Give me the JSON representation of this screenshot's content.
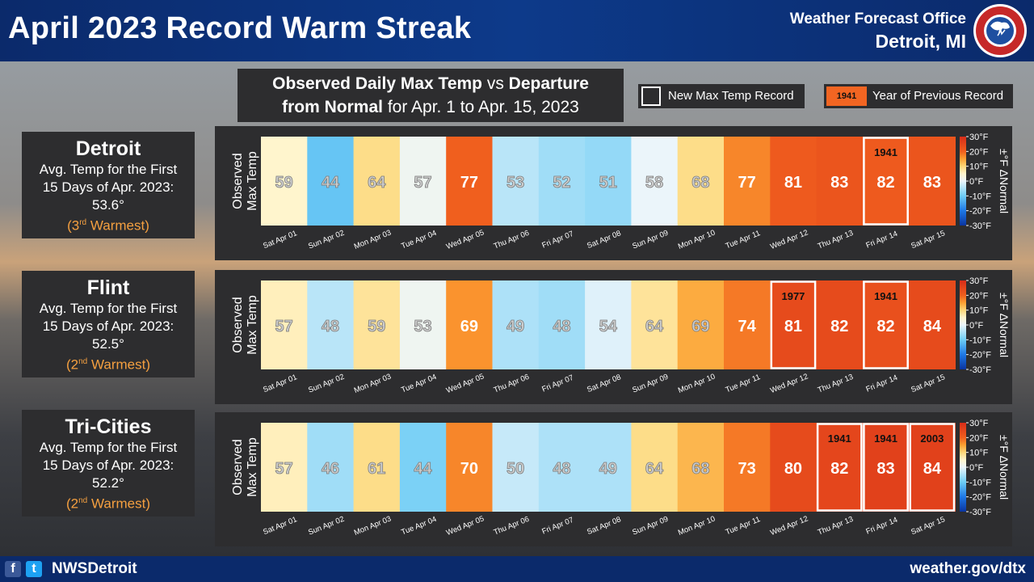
{
  "header": {
    "title": "April 2023 Record Warm Streak",
    "office": "Weather Forecast Office",
    "location": "Detroit, MI",
    "seal_text": "NATIONAL WEATHER SERVICE"
  },
  "subtitle": {
    "line1_bold_a": "Observed Daily Max Temp",
    "line1_mid": " vs ",
    "line1_bold_b": "Departure",
    "line2_bold": "from Normal",
    "line2_rest": " for Apr. 1 to Apr. 15, 2023"
  },
  "legend": {
    "record_label": "New Max Temp Record",
    "prev_sample": "1941",
    "prev_label": "Year of Previous Record"
  },
  "footer": {
    "handle": "NWSDetroit",
    "site": "weather.gov/dtx",
    "fb": "f",
    "tw": "t"
  },
  "colors": {
    "header_bg": "#0b2a6b",
    "panel_bg": "#2d2d2f",
    "rank": "#f5a040",
    "record_year": "#f26522"
  },
  "cities": [
    {
      "name": "Detroit",
      "line1": "Avg. Temp for the First",
      "line2": "15 Days of Apr. 2023:",
      "avg": "53.6°",
      "rank_num": "(3",
      "rank_sup": "rd",
      "rank_rest": " Warmest)"
    },
    {
      "name": "Flint",
      "line1": "Avg. Temp for the First",
      "line2": "15 Days of Apr. 2023:",
      "avg": "52.5°",
      "rank_num": "(2",
      "rank_sup": "nd",
      "rank_rest": " Warmest)"
    },
    {
      "name": "Tri-Cities",
      "line1": "Avg. Temp for the First",
      "line2": "15 Days of Apr. 2023:",
      "avg": "52.2°",
      "rank_num": "(2",
      "rank_sup": "nd",
      "rank_rest": " Warmest)"
    }
  ],
  "chart_data": [
    {
      "type": "heatmap",
      "city": "Detroit",
      "ylabel": [
        "Observed",
        "Max Temp"
      ],
      "categories": [
        "Sat Apr 01",
        "Sun Apr 02",
        "Mon Apr 03",
        "Tue Apr 04",
        "Wed Apr 05",
        "Thu Apr 06",
        "Fri Apr 07",
        "Sat Apr 08",
        "Sun Apr 09",
        "Mon Apr 10",
        "Tue Apr 11",
        "Wed Apr 12",
        "Thu Apr 13",
        "Fri Apr 14",
        "Sat Apr 15"
      ],
      "values": [
        59,
        44,
        64,
        57,
        77,
        53,
        52,
        51,
        58,
        68,
        77,
        81,
        83,
        82,
        83
      ],
      "departures": [
        5,
        -11,
        9,
        1,
        20,
        -4,
        -6,
        -7,
        0,
        9,
        17,
        21,
        22,
        21,
        22
      ],
      "records": [
        {
          "index": 13,
          "prev_year": "1941"
        }
      ],
      "colorbar": {
        "label": "±°F ΔNormal",
        "ticks": [
          "30°F",
          "20°F",
          "10°F",
          "0°F",
          "-10°F",
          "-20°F",
          "-30°F"
        ],
        "range": [
          -30,
          30
        ]
      }
    },
    {
      "type": "heatmap",
      "city": "Flint",
      "ylabel": [
        "Observed",
        "Max Temp"
      ],
      "categories": [
        "Sat Apr 01",
        "Sun Apr 02",
        "Mon Apr 03",
        "Tue Apr 04",
        "Wed Apr 05",
        "Thu Apr 06",
        "Fri Apr 07",
        "Sat Apr 08",
        "Sun Apr 09",
        "Mon Apr 10",
        "Tue Apr 11",
        "Wed Apr 12",
        "Thu Apr 13",
        "Fri Apr 14",
        "Sat Apr 15"
      ],
      "values": [
        57,
        48,
        59,
        53,
        69,
        49,
        48,
        54,
        64,
        69,
        74,
        81,
        82,
        82,
        84
      ],
      "departures": [
        6,
        -4,
        8,
        1,
        16,
        -5,
        -6,
        -1,
        8,
        14,
        18,
        24,
        24,
        23,
        24
      ],
      "records": [
        {
          "index": 11,
          "prev_year": "1977"
        },
        {
          "index": 13,
          "prev_year": "1941"
        }
      ],
      "colorbar": {
        "label": "±°F ΔNormal",
        "ticks": [
          "30°F",
          "20°F",
          "10°F",
          "0°F",
          "-10°F",
          "-20°F",
          "-30°F"
        ],
        "range": [
          -30,
          30
        ]
      }
    },
    {
      "type": "heatmap",
      "city": "Tri-Cities",
      "ylabel": [
        "Observed",
        "Max Temp"
      ],
      "categories": [
        "Sat Apr 01",
        "Sun Apr 02",
        "Mon Apr 03",
        "Tue Apr 04",
        "Wed Apr 05",
        "Thu Apr 06",
        "Fri Apr 07",
        "Sat Apr 08",
        "Sun Apr 09",
        "Mon Apr 10",
        "Tue Apr 11",
        "Wed Apr 12",
        "Thu Apr 13",
        "Fri Apr 14",
        "Sat Apr 15"
      ],
      "values": [
        57,
        46,
        61,
        44,
        70,
        50,
        48,
        49,
        64,
        68,
        73,
        80,
        82,
        83,
        84
      ],
      "departures": [
        6,
        -6,
        9,
        -9,
        17,
        -3,
        -5,
        -5,
        9,
        13,
        18,
        24,
        25,
        26,
        26
      ],
      "records": [
        {
          "index": 12,
          "prev_year": "1941"
        },
        {
          "index": 13,
          "prev_year": "1941"
        },
        {
          "index": 14,
          "prev_year": "2003"
        }
      ],
      "colorbar": {
        "label": "±°F ΔNormal",
        "ticks": [
          "30°F",
          "20°F",
          "10°F",
          "0°F",
          "-10°F",
          "-20°F",
          "-30°F"
        ],
        "range": [
          -30,
          30
        ]
      }
    }
  ]
}
